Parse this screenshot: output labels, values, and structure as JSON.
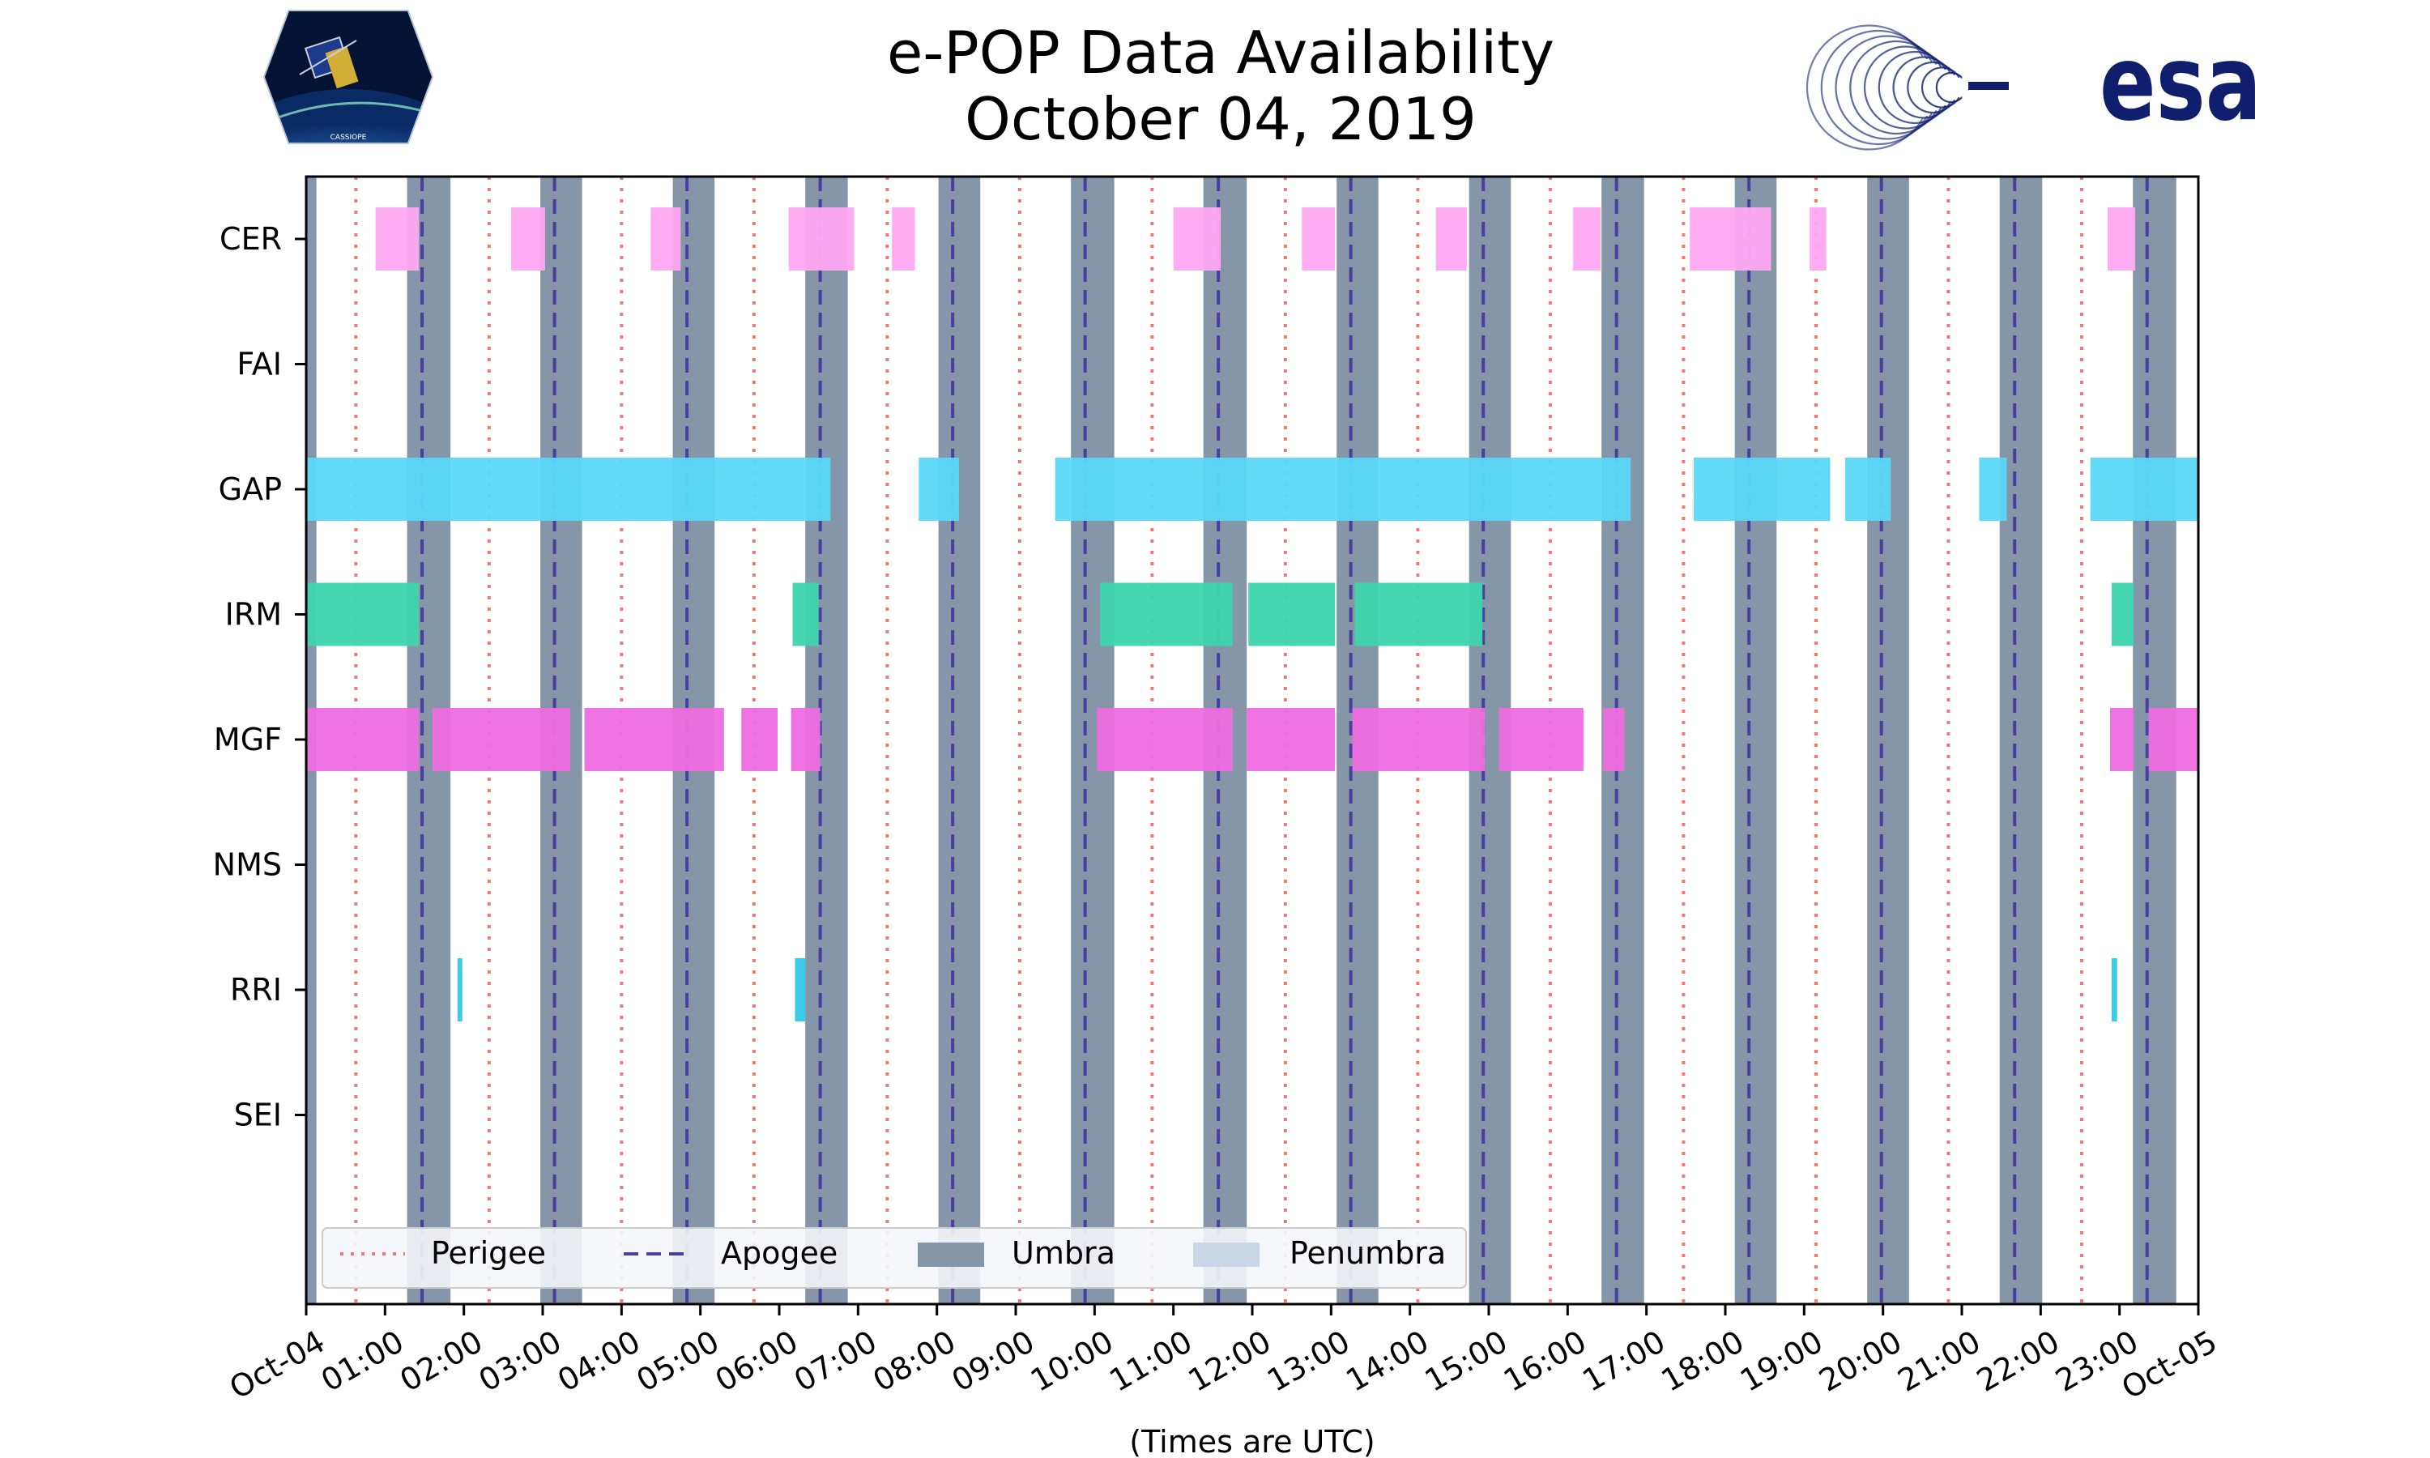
{
  "chart_data": {
    "type": "timeline",
    "title": [
      "e-POP Data Availability",
      "October 04, 2019"
    ],
    "xlabel": "(Times are UTC)",
    "xlim_hours": [
      0,
      24
    ],
    "x_tick_labels": [
      "Oct-04",
      "01:00",
      "02:00",
      "03:00",
      "04:00",
      "05:00",
      "06:00",
      "07:00",
      "08:00",
      "09:00",
      "10:00",
      "11:00",
      "12:00",
      "13:00",
      "14:00",
      "15:00",
      "16:00",
      "17:00",
      "18:00",
      "19:00",
      "20:00",
      "21:00",
      "22:00",
      "23:00",
      "Oct-05"
    ],
    "instruments": [
      "CER",
      "FAI",
      "GAP",
      "IRM",
      "MGF",
      "NMS",
      "RRI",
      "SEI"
    ],
    "colors": {
      "CER": "#ffa8f2",
      "GAP": "#5ad8f8",
      "IRM": "#3dd5ac",
      "MGF": "#ee6ce0",
      "RRI": "#2ec8e8",
      "umbra": "#8596a8",
      "penumbra": "#c8d6e6",
      "perigee": "#f07878",
      "apogee": "#4a3e9e",
      "legend_bg": "#f4f6f9"
    },
    "umbra_hours": [
      [
        0.0,
        0.13
      ],
      [
        1.28,
        1.83
      ],
      [
        2.97,
        3.5
      ],
      [
        4.65,
        5.18
      ],
      [
        6.33,
        6.87
      ],
      [
        8.02,
        8.55
      ],
      [
        9.7,
        10.25
      ],
      [
        11.38,
        11.93
      ],
      [
        13.07,
        13.6
      ],
      [
        14.75,
        15.28
      ],
      [
        16.43,
        16.97
      ],
      [
        18.12,
        18.65
      ],
      [
        19.8,
        20.33
      ],
      [
        21.48,
        22.02
      ],
      [
        23.17,
        23.72
      ]
    ],
    "apogee_hours": [
      1.47,
      3.15,
      4.83,
      6.52,
      8.2,
      9.88,
      11.57,
      13.25,
      14.93,
      16.62,
      18.3,
      19.98,
      21.67,
      23.35
    ],
    "perigee_hours": [
      0.63,
      2.32,
      4.0,
      5.68,
      7.37,
      9.05,
      10.73,
      12.42,
      14.1,
      15.78,
      17.47,
      19.15,
      20.83,
      22.52
    ],
    "segments": {
      "CER": [
        [
          0.88,
          1.43
        ],
        [
          2.6,
          3.03
        ],
        [
          4.37,
          4.75
        ],
        [
          6.12,
          6.95
        ],
        [
          7.43,
          7.72
        ],
        [
          11.0,
          11.6
        ],
        [
          12.63,
          13.05
        ],
        [
          14.33,
          14.72
        ],
        [
          16.07,
          16.42
        ],
        [
          17.55,
          18.58
        ],
        [
          19.07,
          19.28
        ],
        [
          22.85,
          23.2
        ]
      ],
      "FAI": [],
      "GAP": [
        [
          0.0,
          6.65
        ],
        [
          7.77,
          8.28
        ],
        [
          9.5,
          16.8
        ],
        [
          17.6,
          19.33
        ],
        [
          19.52,
          20.1
        ],
        [
          21.22,
          21.57
        ],
        [
          22.63,
          24.0
        ]
      ],
      "IRM": [
        [
          0.0,
          1.43
        ],
        [
          6.17,
          6.5
        ],
        [
          10.07,
          11.75
        ],
        [
          11.95,
          13.05
        ],
        [
          13.3,
          14.92
        ],
        [
          22.9,
          23.18
        ]
      ],
      "MGF": [
        [
          0.0,
          1.43
        ],
        [
          1.6,
          3.35
        ],
        [
          3.53,
          5.3
        ],
        [
          5.52,
          5.98
        ],
        [
          6.15,
          6.52
        ],
        [
          10.03,
          11.75
        ],
        [
          11.93,
          13.05
        ],
        [
          13.27,
          14.95
        ],
        [
          15.13,
          16.2
        ],
        [
          16.45,
          16.72
        ],
        [
          22.88,
          23.18
        ],
        [
          23.37,
          24.0
        ]
      ],
      "NMS": [],
      "RRI": [
        [
          1.92,
          1.98
        ],
        [
          6.2,
          6.33
        ],
        [
          22.9,
          22.97
        ]
      ],
      "SEI": []
    },
    "legend": [
      "Perigee",
      "Apogee",
      "Umbra",
      "Penumbra"
    ],
    "legend_position": "lower-left"
  },
  "logos": {
    "cassiope": {
      "label": "CASSIOPE"
    },
    "esa": {
      "label": "esa"
    }
  }
}
